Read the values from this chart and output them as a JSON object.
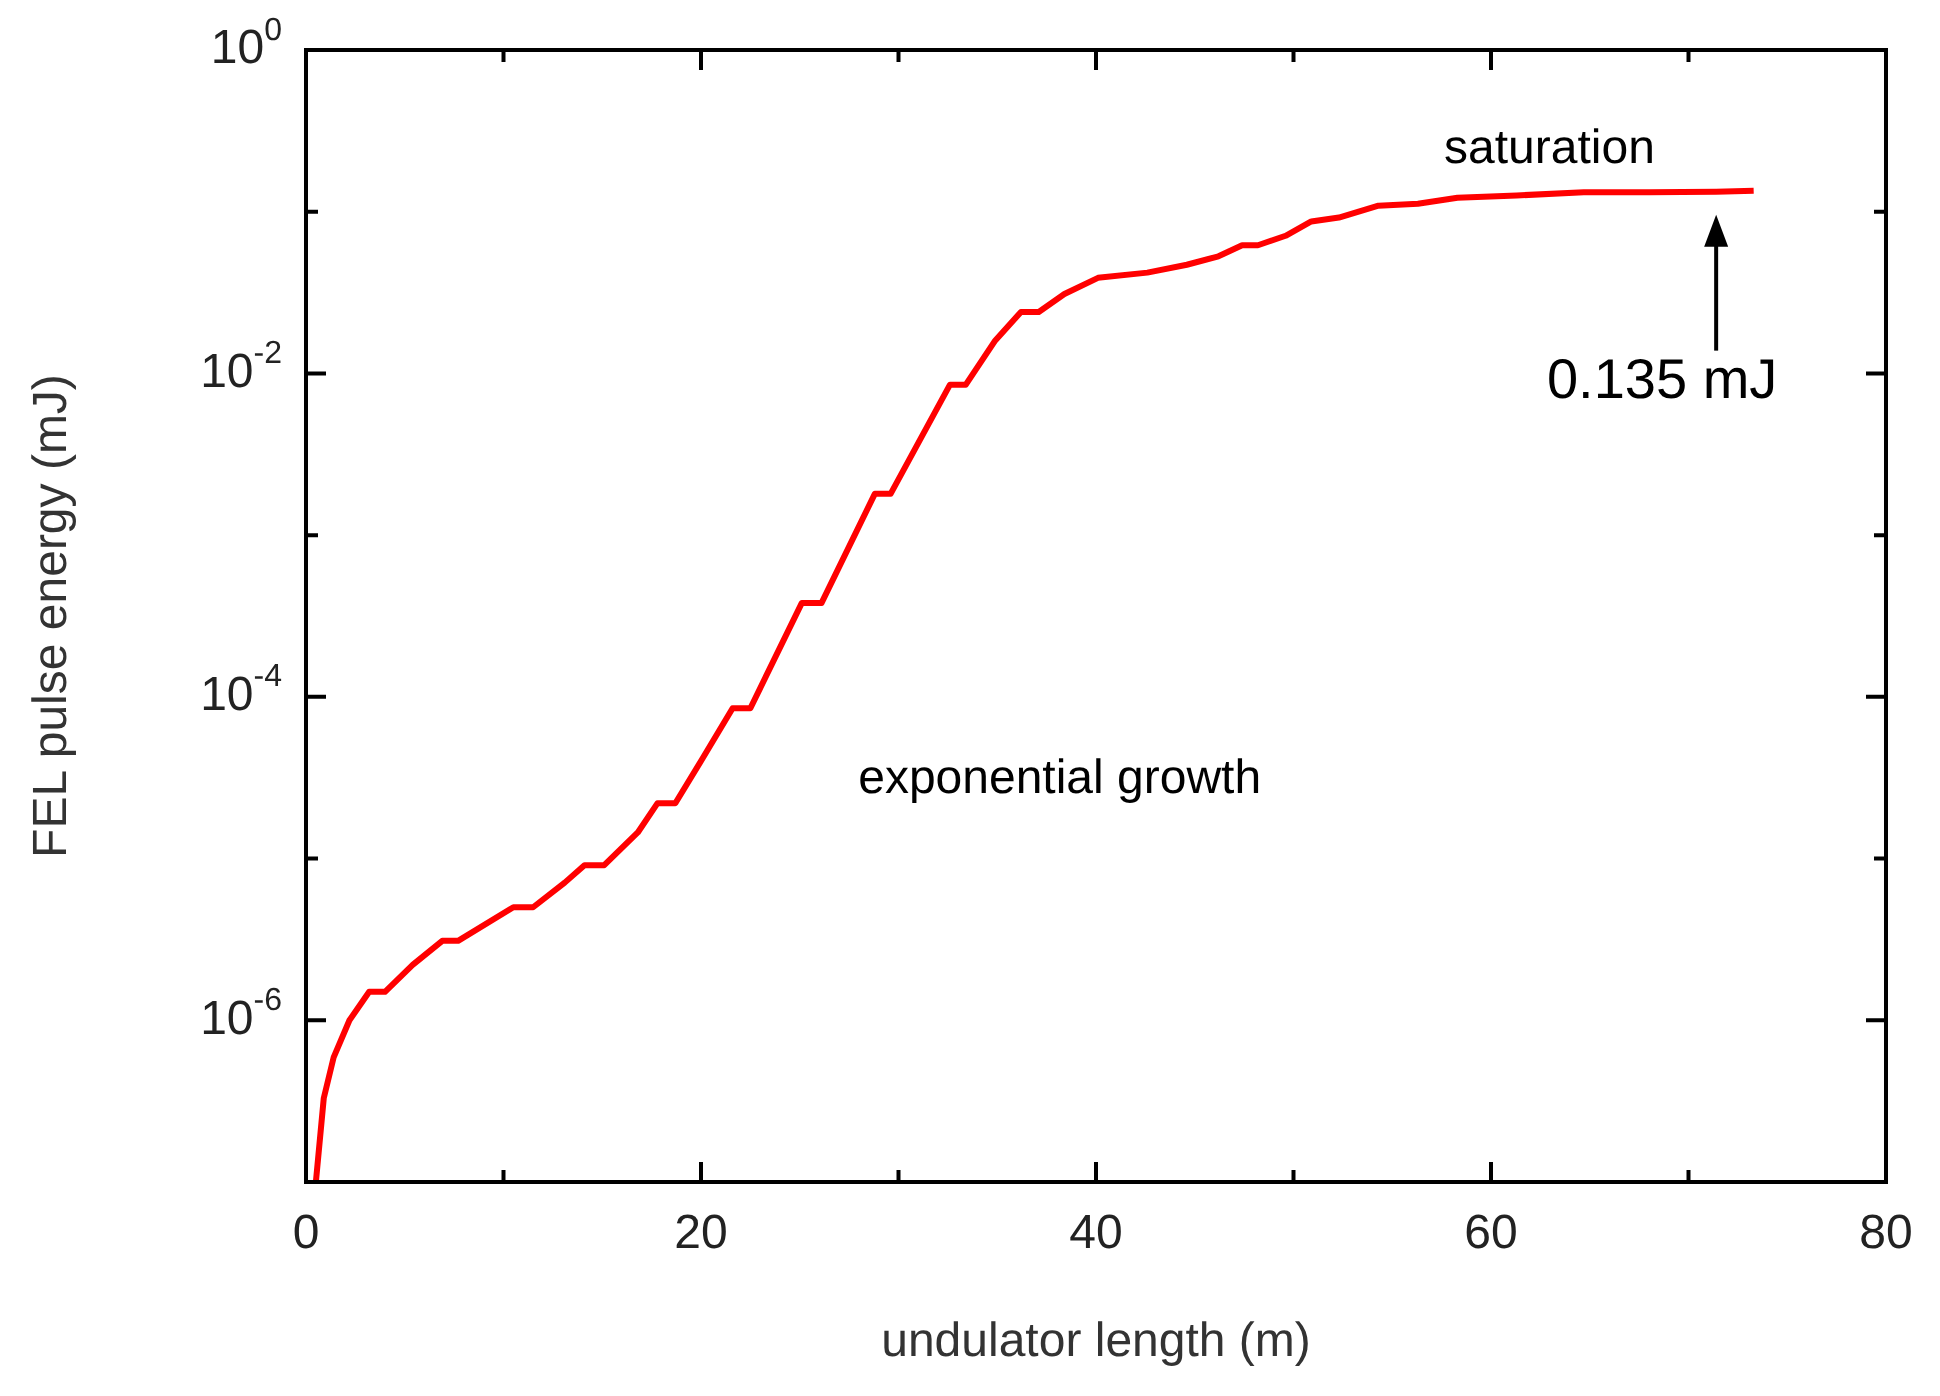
{
  "chart_data": {
    "type": "line",
    "xlabel": "undulator length (m)",
    "ylabel": "FEL pulse energy (mJ)",
    "color": "#ff0000",
    "log": true,
    "x": [
      0.5,
      0.9,
      1.4,
      2.2,
      3.2,
      4.0,
      5.4,
      6.9,
      7.7,
      10.5,
      11.5,
      13.1,
      14.1,
      15.1,
      16.8,
      17.8,
      18.7,
      20.1,
      21.6,
      22.5,
      25.1,
      26.1,
      28.8,
      29.6,
      32.6,
      33.4,
      34.9,
      36.2,
      37.1,
      38.4,
      40.1,
      42.6,
      44.6,
      46.2,
      47.4,
      48.2,
      49.6,
      50.9,
      52.3,
      54.3,
      56.3,
      58.3,
      61.3,
      64.7,
      68.0,
      71.4,
      73.3
    ],
    "values": [
      1e-07,
      3.3e-07,
      5.9e-07,
      1e-06,
      1.5e-06,
      1.5e-06,
      2.2e-06,
      3.1e-06,
      3.1e-06,
      5e-06,
      5e-06,
      7.1e-06,
      9.1e-06,
      9.1e-06,
      1.45e-05,
      2.2e-05,
      2.2e-05,
      4.2e-05,
      8.5e-05,
      8.5e-05,
      0.00038,
      0.00038,
      0.0018,
      0.0018,
      0.0085,
      0.0085,
      0.016,
      0.024,
      0.024,
      0.031,
      0.039,
      0.042,
      0.047,
      0.053,
      0.062,
      0.062,
      0.071,
      0.087,
      0.092,
      0.109,
      0.112,
      0.122,
      0.126,
      0.132,
      0.132,
      0.133,
      0.135
    ],
    "xlim": [
      0,
      80
    ],
    "ylim": [
      1e-07,
      1
    ],
    "xticks": [
      0,
      {
        "value": 10,
        "label": null
      },
      20,
      {
        "value": 30,
        "label": null
      },
      40,
      {
        "value": 50,
        "label": null
      },
      60,
      {
        "value": 70,
        "label": null
      },
      80
    ],
    "yticks": [
      {
        "value": 1e-07,
        "label": null
      },
      {
        "value": 1e-06,
        "label": "10$^{-6}$"
      },
      {
        "value": 1e-05,
        "label": null
      },
      {
        "value": 0.0001,
        "label": "10$^{-4}$"
      },
      {
        "value": 0.001,
        "label": null
      },
      {
        "value": 0.01,
        "label": "10$^{-2}$"
      },
      {
        "value": 0.1,
        "label": null
      },
      {
        "value": 1,
        "label": "10$^{0}$"
      }
    ],
    "annotations": [
      "saturation",
      "exponential growth",
      {
        "text": "0.135 mJ",
        "x": 71.4,
        "y": 0.135
      }
    ]
  }
}
